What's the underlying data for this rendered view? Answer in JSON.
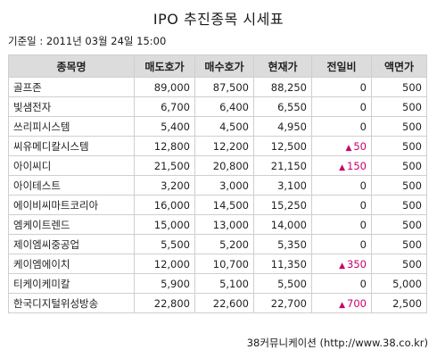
{
  "page": {
    "title": "IPO 추진종목 시세표",
    "base_date": "기준일 : 2011년 03월 24일 15:00",
    "source": "38커뮤니케이션 (http://www.38.co.kr)"
  },
  "table": {
    "headers": [
      "종목명",
      "매도호가",
      "매수호가",
      "현재가",
      "전일비",
      "액면가"
    ],
    "rows": [
      {
        "name": "골프존",
        "ask": "89,000",
        "bid": "87,500",
        "price": "88,250",
        "change": "0",
        "up": false,
        "face": "500"
      },
      {
        "name": "빛샘전자",
        "ask": "6,700",
        "bid": "6,400",
        "price": "6,550",
        "change": "0",
        "up": false,
        "face": "500"
      },
      {
        "name": "쓰리피시스템",
        "ask": "5,400",
        "bid": "4,500",
        "price": "4,950",
        "change": "0",
        "up": false,
        "face": "500"
      },
      {
        "name": "씨유메디칼시스템",
        "ask": "12,800",
        "bid": "12,200",
        "price": "12,500",
        "change": "50",
        "up": true,
        "face": "500"
      },
      {
        "name": "아이씨디",
        "ask": "21,500",
        "bid": "20,800",
        "price": "21,150",
        "change": "150",
        "up": true,
        "face": "500"
      },
      {
        "name": "아이테스트",
        "ask": "3,200",
        "bid": "3,000",
        "price": "3,100",
        "change": "0",
        "up": false,
        "face": "500"
      },
      {
        "name": "에이비씨마트코리아",
        "ask": "16,000",
        "bid": "14,500",
        "price": "15,250",
        "change": "0",
        "up": false,
        "face": "500"
      },
      {
        "name": "엠케이트렌드",
        "ask": "15,000",
        "bid": "13,000",
        "price": "14,000",
        "change": "0",
        "up": false,
        "face": "500"
      },
      {
        "name": "제이엠씨중공업",
        "ask": "5,500",
        "bid": "5,200",
        "price": "5,350",
        "change": "0",
        "up": false,
        "face": "500"
      },
      {
        "name": "케이엠에이치",
        "ask": "12,000",
        "bid": "10,700",
        "price": "11,350",
        "change": "350",
        "up": true,
        "face": "500"
      },
      {
        "name": "티케이케미칼",
        "ask": "5,900",
        "bid": "5,100",
        "price": "5,500",
        "change": "0",
        "up": false,
        "face": "5,000"
      },
      {
        "name": "한국디지털위성방송",
        "ask": "22,800",
        "bid": "22,600",
        "price": "22,700",
        "change": "700",
        "up": true,
        "face": "2,500"
      }
    ],
    "up_icon": "triangle-up-icon",
    "up_color": "#c8006b",
    "header_bg": "#dcdcdc",
    "border_color": "#cfcfcf"
  }
}
